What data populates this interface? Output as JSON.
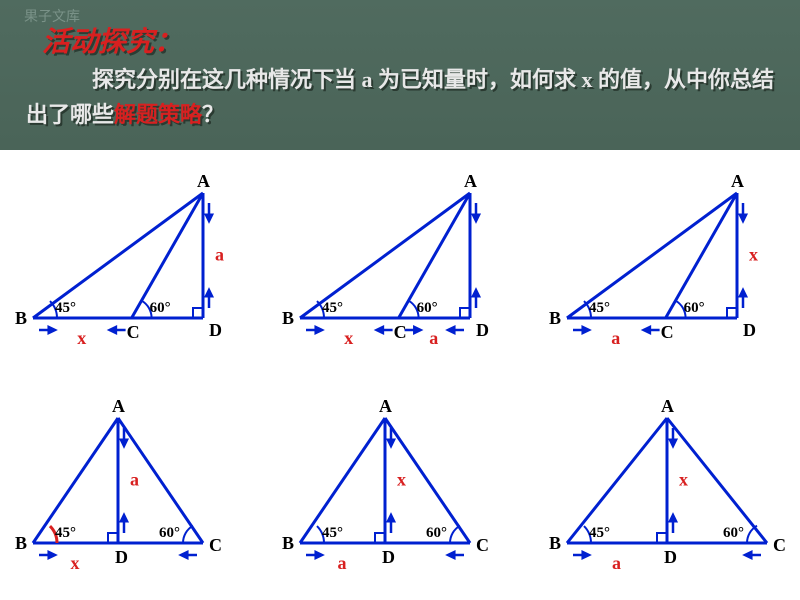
{
  "watermark": "果子文库",
  "title": "活动探究：",
  "body_pre": "　　　探究分别在这几种情况下当 a 为已知量时，如何求 x 的值，从中你总结出了哪些",
  "body_hl": "解题策略",
  "body_post": "？",
  "labels": {
    "A": "A",
    "B": "B",
    "C": "C",
    "D": "D",
    "ang45": "45°",
    "ang60": "60°"
  },
  "diagrams": [
    {
      "vert": "a",
      "seg1": "x",
      "seg2": "",
      "cInside": true,
      "dRight": true,
      "redAngB": false
    },
    {
      "vert": "",
      "seg1": "x",
      "seg2": "a",
      "cInside": true,
      "dRight": true,
      "redAngB": false
    },
    {
      "vert": "x",
      "seg1": "a",
      "seg2": "",
      "cInside": true,
      "dRight": true,
      "redAngB": false
    },
    {
      "vert": "a",
      "seg1": "x",
      "seg2": "",
      "cInside": false,
      "dRight": false,
      "redAngB": true
    },
    {
      "vert": "x",
      "seg1": "a",
      "seg2": "",
      "cInside": false,
      "dRight": false,
      "redAngB": false
    },
    {
      "vert": "x",
      "seg1": "a",
      "seg2": "",
      "cInside": false,
      "dRight": false,
      "redAngB": false,
      "wide": true
    }
  ],
  "colors": {
    "blue": "#0020d0",
    "red": "#d82020",
    "headerBg": "#4e685d"
  }
}
